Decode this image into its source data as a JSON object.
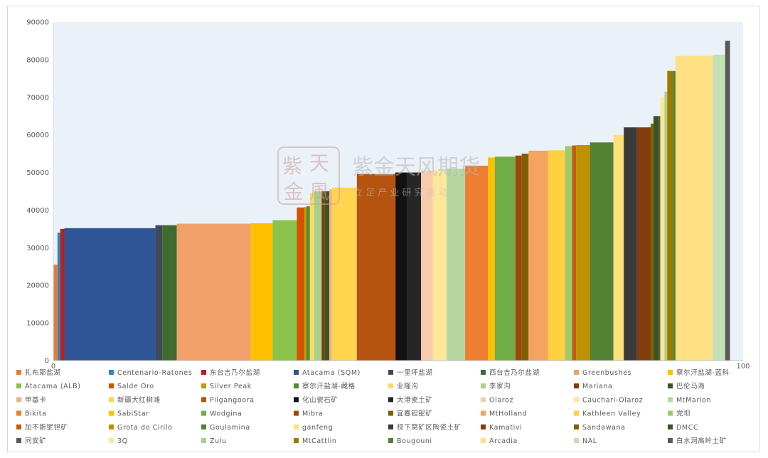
{
  "watermark": {
    "logo_chars": [
      "紫",
      "天",
      "金",
      "風"
    ],
    "title": "紫金天风期货",
    "subtitle": "立 足 产 业 研 究 驱 动"
  },
  "chart_data": {
    "type": "bar",
    "variable_width": true,
    "ylim": [
      0,
      90000
    ],
    "yticks": [
      0,
      10000,
      20000,
      30000,
      40000,
      50000,
      60000,
      70000,
      80000,
      90000
    ],
    "xlim": [
      0,
      100
    ],
    "xtick_labels": [
      "0",
      "100"
    ],
    "grid": false,
    "legend_position": "bottom",
    "series": [
      {
        "name": "扎布耶盐湖",
        "x0": 0.0,
        "x1": 0.6,
        "value": 25500,
        "color": "#E97B37"
      },
      {
        "name": "Centenario-Ratones",
        "x0": 0.6,
        "x1": 1.0,
        "value": 34000,
        "color": "#2E86C1"
      },
      {
        "name": "东台吉乃尔盐湖",
        "x0": 1.0,
        "x1": 1.6,
        "value": 35000,
        "color": "#B22222"
      },
      {
        "name": "Atacama (SQM)",
        "x0": 1.6,
        "x1": 14.8,
        "value": 35200,
        "color": "#2F5597"
      },
      {
        "name": "一里坪盐湖",
        "x0": 14.8,
        "x1": 15.8,
        "value": 36000,
        "color": "#404A57"
      },
      {
        "name": "西台吉乃尔盐湖",
        "x0": 15.8,
        "x1": 17.9,
        "value": 36000,
        "color": "#3E6B2F"
      },
      {
        "name": "Greenbushes",
        "x0": 17.9,
        "x1": 28.6,
        "value": 36400,
        "color": "#F0A068"
      },
      {
        "name": "察尔汗盐湖-蓝科",
        "x0": 28.6,
        "x1": 31.8,
        "value": 36500,
        "color": "#FFC000"
      },
      {
        "name": "Atacama (ALB)",
        "x0": 31.8,
        "x1": 35.3,
        "value": 37300,
        "color": "#8BC34A"
      },
      {
        "name": "Salde Oro",
        "x0": 35.3,
        "x1": 36.4,
        "value": 40700,
        "color": "#D35400"
      },
      {
        "name": "Silver Peak",
        "x0": 36.4,
        "x1": 36.7,
        "value": 40800,
        "color": "#C49A00"
      },
      {
        "name": "察尔汗盐湖-藏格",
        "x0": 36.7,
        "x1": 37.2,
        "value": 41000,
        "color": "#4E8C2F"
      },
      {
        "name": "业隆沟",
        "x0": 37.2,
        "x1": 37.8,
        "value": 44500,
        "color": "#FFD966"
      },
      {
        "name": "李家沟",
        "x0": 37.8,
        "x1": 38.9,
        "value": 45000,
        "color": "#A9D18E"
      },
      {
        "name": "Mariana",
        "x0": 38.9,
        "x1": 39.3,
        "value": 45000,
        "color": "#843C0C"
      },
      {
        "name": "巴伦马海",
        "x0": 39.3,
        "x1": 40.0,
        "value": 45000,
        "color": "#375623"
      },
      {
        "name": "甲基卡",
        "x0": 40.0,
        "x1": 40.4,
        "value": 45500,
        "color": "#F4B183"
      },
      {
        "name": "新疆大红柳滩",
        "x0": 40.4,
        "x1": 44.0,
        "value": 46000,
        "color": "#FFD54F"
      },
      {
        "name": "Pilgangoora",
        "x0": 44.0,
        "x1": 49.6,
        "value": 49600,
        "color": "#B5530F"
      },
      {
        "name": "化山瓷石矿",
        "x0": 49.6,
        "x1": 51.3,
        "value": 50000,
        "color": "#121212"
      },
      {
        "name": "大港瓷土矿",
        "x0": 51.3,
        "x1": 53.3,
        "value": 50000,
        "color": "#262626"
      },
      {
        "name": "Olaroz",
        "x0": 53.3,
        "x1": 55.0,
        "value": 50500,
        "color": "#F8CBAD"
      },
      {
        "name": "Cauchari-Olaroz",
        "x0": 55.0,
        "x1": 57.0,
        "value": 50500,
        "color": "#FFE699"
      },
      {
        "name": "MtMarion",
        "x0": 57.0,
        "x1": 59.7,
        "value": 51000,
        "color": "#B4D7A0"
      },
      {
        "name": "Bikita",
        "x0": 59.7,
        "x1": 63.0,
        "value": 51800,
        "color": "#ED7D31"
      },
      {
        "name": "SabiStar",
        "x0": 63.0,
        "x1": 64.0,
        "value": 54000,
        "color": "#FFC000"
      },
      {
        "name": "Wodgina",
        "x0": 64.0,
        "x1": 67.0,
        "value": 54200,
        "color": "#70AD47"
      },
      {
        "name": "Mibra",
        "x0": 67.0,
        "x1": 67.9,
        "value": 54500,
        "color": "#9E480E"
      },
      {
        "name": "宜春钽铌矿",
        "x0": 67.9,
        "x1": 68.9,
        "value": 55000,
        "color": "#7F6000"
      },
      {
        "name": "MtHolland",
        "x0": 68.9,
        "x1": 71.7,
        "value": 55800,
        "color": "#F4A460"
      },
      {
        "name": "Kathleen Valley",
        "x0": 71.7,
        "x1": 74.2,
        "value": 55900,
        "color": "#FFD040"
      },
      {
        "name": "党坝",
        "x0": 74.2,
        "x1": 75.2,
        "value": 57000,
        "color": "#9BCB6A"
      },
      {
        "name": "加不斯铌钽矿",
        "x0": 75.2,
        "x1": 75.8,
        "value": 57200,
        "color": "#C55A11"
      },
      {
        "name": "Grota do Cirilo",
        "x0": 75.8,
        "x1": 77.8,
        "value": 57300,
        "color": "#BF9000"
      },
      {
        "name": "Goulamina",
        "x0": 77.8,
        "x1": 81.2,
        "value": 58000,
        "color": "#548235"
      },
      {
        "name": "ganfeng",
        "x0": 81.2,
        "x1": 82.7,
        "value": 60000,
        "color": "#FFE07A"
      },
      {
        "name": "枧下窝矿区陶瓷土矿",
        "x0": 82.7,
        "x1": 84.6,
        "value": 62000,
        "color": "#3A3A3A"
      },
      {
        "name": "Kamativi",
        "x0": 84.6,
        "x1": 86.6,
        "value": 62000,
        "color": "#843C0C"
      },
      {
        "name": "Sandawana",
        "x0": 86.6,
        "x1": 87.0,
        "value": 63000,
        "color": "#7F6000"
      },
      {
        "name": "DMCC",
        "x0": 87.0,
        "x1": 87.8,
        "value": 65000,
        "color": "#375623"
      },
      {
        "name": "同安矿",
        "x0": 87.8,
        "x1": 88.0,
        "value": 65000,
        "color": "#595959"
      },
      {
        "name": "3Q",
        "x0": 88.0,
        "x1": 88.6,
        "value": 70000,
        "color": "#FFE699"
      },
      {
        "name": "Zulu",
        "x0": 88.6,
        "x1": 89.0,
        "value": 71500,
        "color": "#A9D18E"
      },
      {
        "name": "MtCattlin",
        "x0": 89.0,
        "x1": 89.8,
        "value": 77000,
        "color": "#9C7A00"
      },
      {
        "name": "Bougouni",
        "x0": 89.8,
        "x1": 90.2,
        "value": 77000,
        "color": "#548235"
      },
      {
        "name": "Arcadia",
        "x0": 90.2,
        "x1": 95.6,
        "value": 81000,
        "color": "#FFE082"
      },
      {
        "name": "NAL",
        "x0": 95.6,
        "x1": 97.4,
        "value": 81300,
        "color": "#C5E0B4"
      },
      {
        "name": "白水洞高岭土矿",
        "x0": 97.4,
        "x1": 98.1,
        "value": 85000,
        "color": "#595959"
      }
    ]
  }
}
